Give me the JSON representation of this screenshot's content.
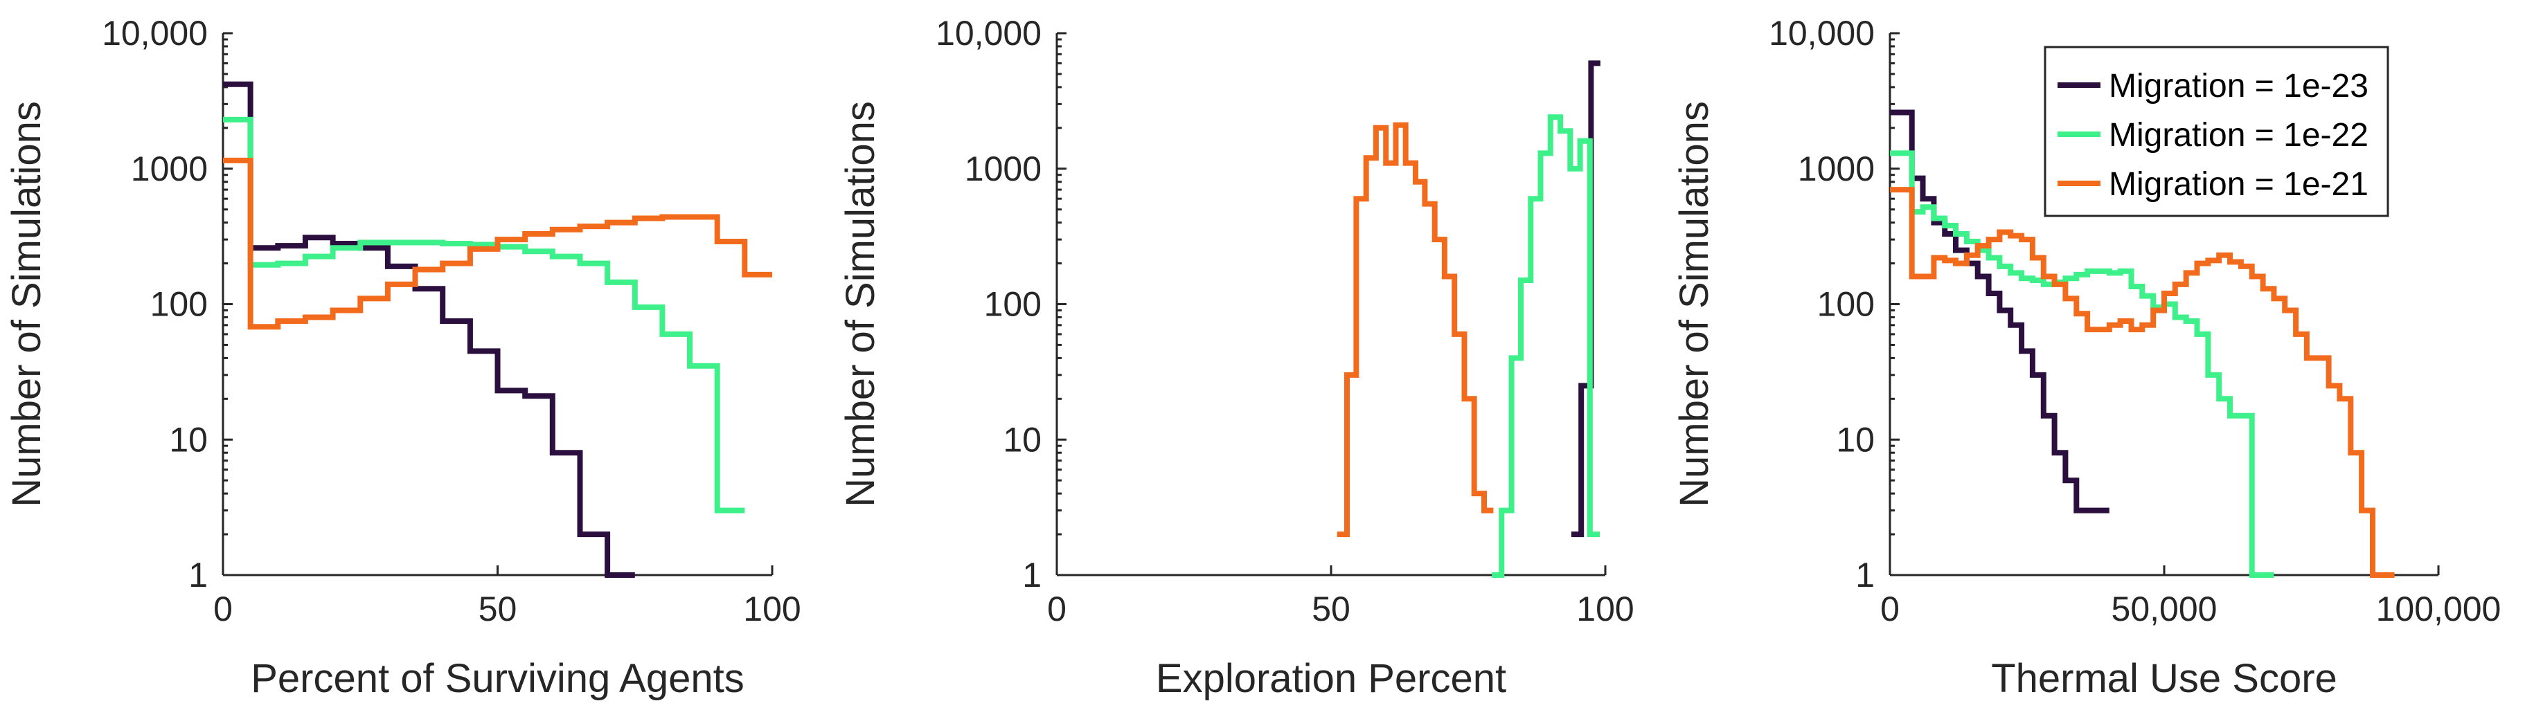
{
  "chart_data": [
    {
      "type": "line",
      "subtype": "stairs-histogram",
      "xlabel": "Percent of Surviving Agents",
      "ylabel": "Number of Simulations",
      "xlim": [
        0,
        100
      ],
      "ylim": [
        1,
        10000
      ],
      "yscale": "log",
      "xticks": [
        0,
        50,
        100
      ],
      "xtick_labels": [
        "0",
        "50",
        "100"
      ],
      "yticks": [
        1,
        10,
        100,
        1000,
        10000
      ],
      "ytick_labels": [
        "1",
        "10",
        "100",
        "1000",
        "10,000"
      ],
      "legend": null,
      "series": [
        {
          "name": "Migration = 1e-23",
          "color": "#2b0f3f",
          "x": [
            0,
            5,
            5,
            10,
            15,
            20,
            25,
            30,
            35,
            40,
            45,
            50,
            55,
            60,
            65,
            70,
            70,
            75
          ],
          "y": [
            4200,
            4200,
            260,
            270,
            310,
            280,
            260,
            190,
            130,
            75,
            45,
            23,
            21,
            8,
            2,
            1,
            1,
            1
          ]
        },
        {
          "name": "Migration = 1e-22",
          "color": "#3ef08a",
          "x": [
            0,
            5,
            5,
            10,
            15,
            20,
            25,
            30,
            35,
            40,
            45,
            50,
            55,
            60,
            65,
            70,
            75,
            80,
            85,
            90,
            95
          ],
          "y": [
            2300,
            2300,
            195,
            200,
            225,
            260,
            285,
            285,
            285,
            280,
            275,
            265,
            245,
            225,
            200,
            145,
            95,
            60,
            35,
            3,
            3
          ]
        },
        {
          "name": "Migration = 1e-21",
          "color": "#f26b1d",
          "x": [
            0,
            5,
            5,
            10,
            15,
            20,
            25,
            30,
            35,
            40,
            45,
            50,
            55,
            60,
            65,
            70,
            75,
            80,
            85,
            90,
            95,
            100
          ],
          "y": [
            1150,
            1150,
            68,
            75,
            80,
            90,
            110,
            140,
            180,
            200,
            255,
            300,
            330,
            355,
            375,
            400,
            430,
            440,
            440,
            290,
            165,
            165
          ]
        }
      ]
    },
    {
      "type": "line",
      "subtype": "stairs-histogram",
      "xlabel": "Exploration Percent",
      "ylabel": "Number of Simulations",
      "xlim": [
        0,
        100
      ],
      "ylim": [
        1,
        10000
      ],
      "yscale": "log",
      "xticks": [
        0,
        50,
        100
      ],
      "xtick_labels": [
        "0",
        "50",
        "100"
      ],
      "yticks": [
        1,
        10,
        100,
        1000,
        10000
      ],
      "ytick_labels": [
        "1",
        "10",
        "100",
        "1000",
        "10,000"
      ],
      "legend": null,
      "series": [
        {
          "name": "Migration = 1e-23",
          "color": "#2b0f3f",
          "x": [
            93.8,
            95.6,
            95.6,
            97.4,
            97.4,
            99.1
          ],
          "y": [
            2,
            2,
            25,
            25,
            6000,
            6000
          ]
        },
        {
          "name": "Migration = 1e-22",
          "color": "#3ef08a",
          "x": [
            79.3,
            81.1,
            81.1,
            82.9,
            84.6,
            86.4,
            88.2,
            90,
            91.8,
            93.6,
            95.4,
            97.2,
            97.2,
            99
          ],
          "y": [
            1,
            1,
            3,
            40,
            150,
            600,
            1300,
            2400,
            1900,
            1000,
            1600,
            800,
            2,
            2
          ]
        },
        {
          "name": "Migration = 1e-21",
          "color": "#f26b1d",
          "x": [
            51.1,
            52.9,
            52.9,
            54.6,
            56.4,
            58.2,
            60,
            61.8,
            63.6,
            65.4,
            67.1,
            68.9,
            70.7,
            72.5,
            74.3,
            76.1,
            77.9,
            79.6
          ],
          "y": [
            2,
            2,
            30,
            600,
            1200,
            2000,
            1100,
            2100,
            1100,
            800,
            550,
            300,
            160,
            60,
            20,
            4,
            3,
            3
          ]
        }
      ]
    },
    {
      "type": "line",
      "subtype": "stairs-histogram",
      "xlabel": "Thermal Use Score",
      "ylabel": "Number of Simulations",
      "xlim": [
        0,
        100000
      ],
      "ylim": [
        1,
        10000
      ],
      "yscale": "log",
      "xticks": [
        0,
        50000,
        100000
      ],
      "xtick_labels": [
        "0",
        "50,000",
        "100,000"
      ],
      "yticks": [
        1,
        10,
        100,
        1000,
        10000
      ],
      "ytick_labels": [
        "1",
        "10",
        "100",
        "1000",
        "10,000"
      ],
      "legend": {
        "placement": "top-right",
        "entries": [
          "Migration = 1e-23",
          "Migration = 1e-22",
          "Migration = 1e-21"
        ]
      },
      "series": [
        {
          "name": "Migration = 1e-23",
          "color": "#2b0f3f",
          "x": [
            0,
            2000,
            4000,
            6000,
            8000,
            10000,
            12000,
            14000,
            16000,
            18000,
            20000,
            22000,
            24000,
            26000,
            28000,
            30000,
            32000,
            34000,
            36000,
            38000,
            40000
          ],
          "y": [
            2600,
            2600,
            850,
            600,
            400,
            330,
            250,
            200,
            160,
            120,
            90,
            70,
            45,
            30,
            15,
            8,
            5,
            3,
            3,
            3,
            3
          ]
        },
        {
          "name": "Migration = 1e-22",
          "color": "#3ef08a",
          "x": [
            0,
            2000,
            4000,
            6000,
            8000,
            10000,
            12000,
            14000,
            16000,
            18000,
            20000,
            22000,
            24000,
            26000,
            28000,
            30000,
            32000,
            34000,
            36000,
            38000,
            40000,
            42000,
            44000,
            46000,
            48000,
            50000,
            52000,
            54000,
            56000,
            58000,
            60000,
            62000,
            64000,
            66000,
            68000,
            70000
          ],
          "y": [
            1300,
            1300,
            480,
            520,
            430,
            380,
            330,
            290,
            250,
            220,
            190,
            170,
            155,
            150,
            140,
            145,
            155,
            165,
            175,
            175,
            170,
            175,
            135,
            115,
            95,
            100,
            80,
            75,
            60,
            30,
            20,
            15,
            15,
            1,
            1,
            1
          ]
        },
        {
          "name": "Migration = 1e-21",
          "color": "#f26b1d",
          "x": [
            0,
            2000,
            4000,
            6000,
            8000,
            10000,
            12000,
            14000,
            16000,
            18000,
            20000,
            22000,
            24000,
            26000,
            28000,
            30000,
            32000,
            34000,
            36000,
            38000,
            40000,
            42000,
            44000,
            46000,
            48000,
            50000,
            52000,
            54000,
            56000,
            58000,
            60000,
            62000,
            64000,
            66000,
            68000,
            70000,
            72000,
            74000,
            76000,
            78000,
            80000,
            82000,
            84000,
            86000,
            88000,
            90000,
            92000
          ],
          "y": [
            700,
            700,
            160,
            160,
            220,
            210,
            200,
            230,
            270,
            300,
            340,
            320,
            300,
            220,
            160,
            140,
            110,
            85,
            65,
            65,
            70,
            75,
            65,
            70,
            90,
            120,
            140,
            170,
            200,
            210,
            230,
            205,
            190,
            160,
            130,
            110,
            90,
            60,
            40,
            40,
            25,
            20,
            8,
            3,
            1,
            1,
            1
          ]
        }
      ]
    }
  ]
}
